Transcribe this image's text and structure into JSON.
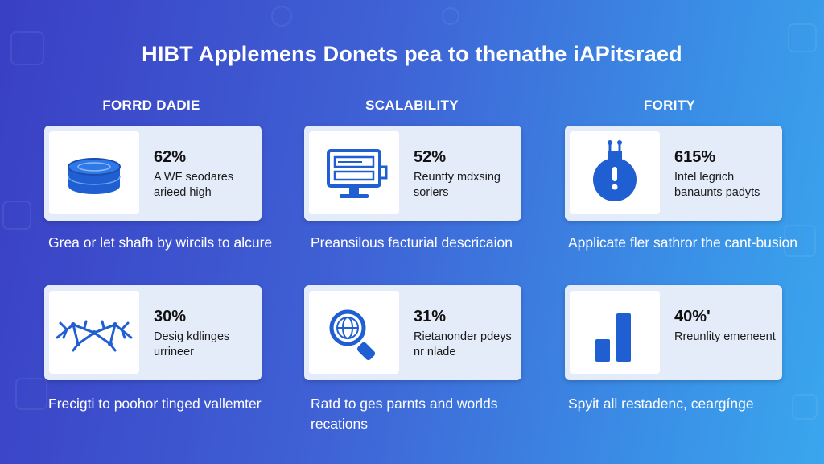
{
  "title": "HIBT Applemens Donets pea to thenathe iAPitsraed",
  "colors": {
    "accent": "#1f5fd1",
    "card_bg": "#e4ecf9"
  },
  "columns": [
    {
      "heading": "FORRD DADIE"
    },
    {
      "heading": "SCALABILITY"
    },
    {
      "heading": "FORITY"
    }
  ],
  "cards": [
    {
      "icon": "stack-disc-icon",
      "percent": "62%",
      "desc": "A WF seodares arieed high",
      "caption": "Grea or let shafh by wircils to alcure"
    },
    {
      "icon": "monitor-icon",
      "percent": "52%",
      "desc": "Reuntty mdxsing soriers",
      "caption": "Preansilous facturial descricaion"
    },
    {
      "icon": "alert-flask-icon",
      "percent": "615%",
      "desc": "Intel legrich banaunts padyts",
      "caption": "Applicate fler sathror the cant-busion"
    },
    {
      "icon": "network-wings-icon",
      "percent": "30%",
      "desc": "Desig kdlinges urrineer",
      "caption": "Frecigti to poohor tinged vallemter"
    },
    {
      "icon": "magnify-globe-icon",
      "percent": "31%",
      "desc": "Rietanonder pdeys nr nlade",
      "caption": "Ratd to ges parnts and worlds recations"
    },
    {
      "icon": "bar-chart-icon",
      "percent": "40%'",
      "desc": "Rreunlity emeneent",
      "caption": "Spyit all restadenc, ceargínge"
    }
  ]
}
